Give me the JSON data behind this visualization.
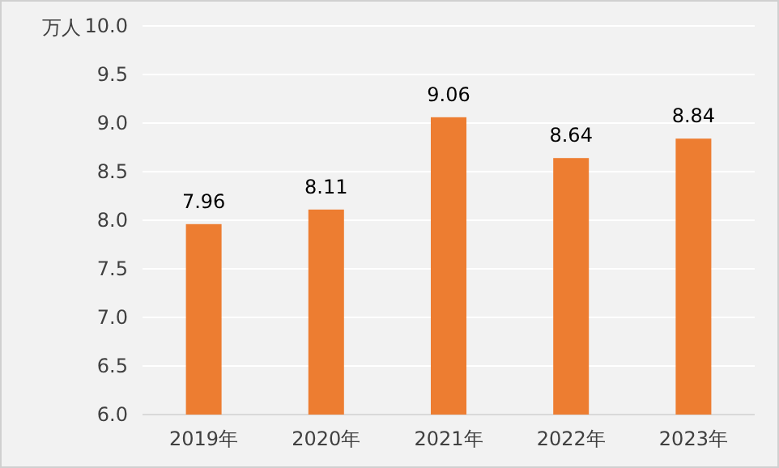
{
  "chart_data": {
    "type": "bar",
    "ylabel": "万人",
    "categories": [
      "2019年",
      "2020年",
      "2021年",
      "2022年",
      "2023年"
    ],
    "series": [
      {
        "color": "#ed7d31",
        "values": [
          7.96,
          8.11,
          9.06,
          8.64,
          8.84
        ]
      }
    ],
    "ylim": [
      6.0,
      10.0
    ],
    "yticks": [
      {
        "value": 6,
        "label": "6.0"
      },
      {
        "value": 6.5,
        "label": "6.5"
      },
      {
        "value": 7,
        "label": "7.0"
      },
      {
        "value": 7.5,
        "label": "7.5"
      },
      {
        "value": 8,
        "label": "8.0"
      },
      {
        "value": 8.5,
        "label": "8.5"
      },
      {
        "value": 9,
        "label": "9.0"
      },
      {
        "value": 9.5,
        "label": "9.5"
      },
      {
        "value": 10,
        "label": "10.0"
      }
    ],
    "grid": "y",
    "data_labels": true
  }
}
